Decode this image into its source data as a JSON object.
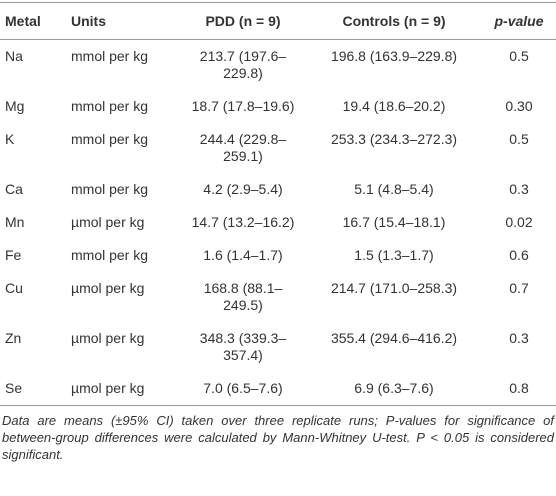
{
  "table": {
    "header": [
      "Metal",
      "Units",
      "PDD (n = 9)",
      "Controls (n = 9)",
      "p-value"
    ],
    "rows": [
      [
        "Na",
        "mmol per kg",
        "213.7 (197.6–229.8)",
        "196.8 (163.9–229.8)",
        "0.5"
      ],
      [
        "Mg",
        "mmol per kg",
        "18.7 (17.8–19.6)",
        "19.4 (18.6–20.2)",
        "0.30"
      ],
      [
        "K",
        "mmol per kg",
        "244.4 (229.8–259.1)",
        "253.3 (234.3–272.3)",
        "0.5"
      ],
      [
        "Ca",
        "mmol per kg",
        "4.2 (2.9–5.4)",
        "5.1 (4.8–5.4)",
        "0.3"
      ],
      [
        "Mn",
        "µmol per kg",
        "14.7 (13.2–16.2)",
        "16.7 (15.4–18.1)",
        "0.02"
      ],
      [
        "Fe",
        "mmol per kg",
        "1.6 (1.4–1.7)",
        "1.5 (1.3–1.7)",
        "0.6"
      ],
      [
        "Cu",
        "µmol per kg",
        "168.8 (88.1–249.5)",
        "214.7 (171.0–258.3)",
        "0.7"
      ],
      [
        "Zn",
        "µmol per kg",
        "348.3 (339.3–357.4)",
        "355.4 (294.6–416.2)",
        "0.3"
      ],
      [
        "Se",
        "µmol per kg",
        "7.0 (6.5–7.6)",
        "6.9 (6.3–7.6)",
        "0.8"
      ]
    ],
    "footnote": "Data are means (±95% CI) taken over three replicate runs; P-values for significance of between-group differences were calculated by Mann-Whitney U-test. P < 0.05 is considered significant."
  }
}
